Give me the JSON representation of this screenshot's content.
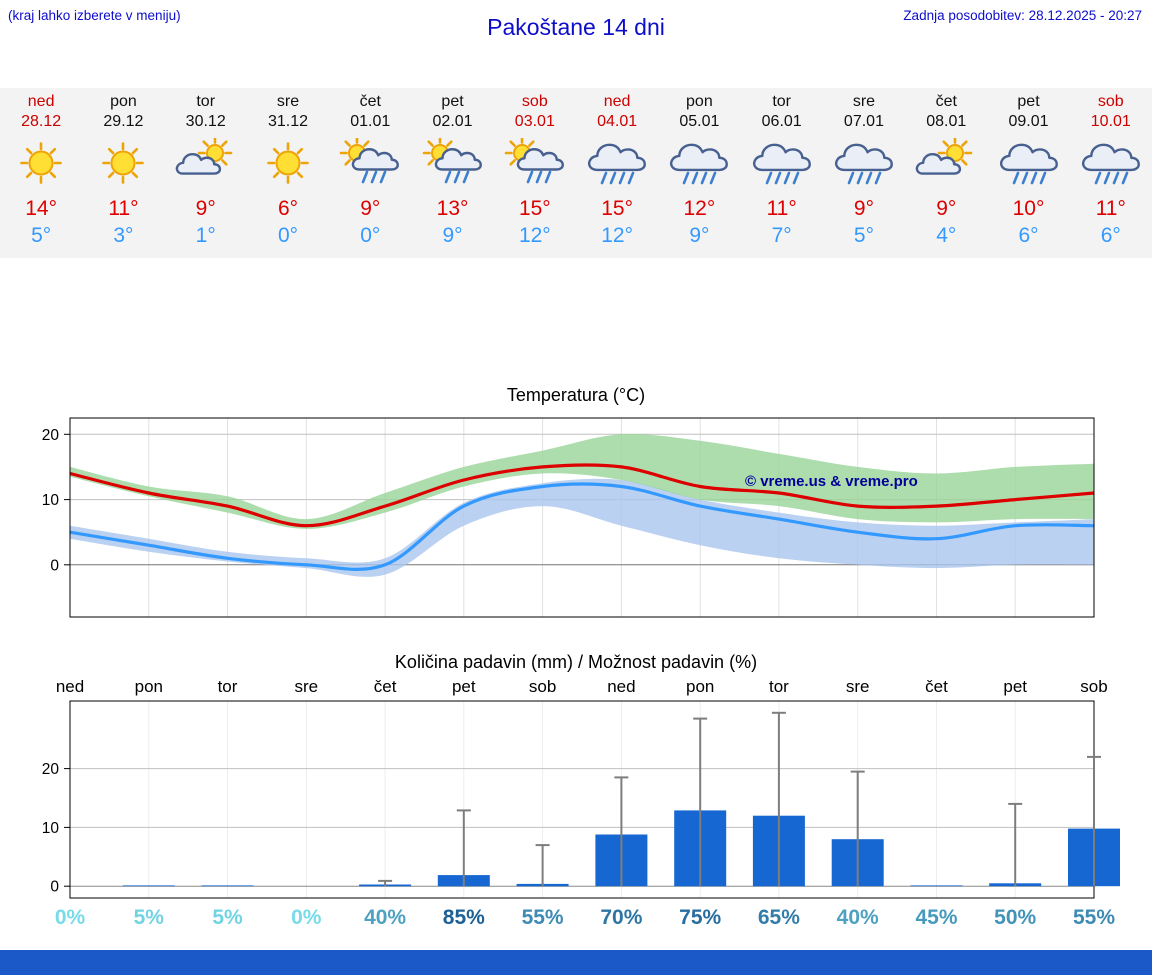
{
  "header": {
    "menu_hint": "(kraj lahko izberete v meniju)",
    "title": "Pakoštane 14 dni",
    "last_update": "Zadnja posodobitev: 28.12.2025 - 20:27"
  },
  "colors": {
    "header_blue": "#0d0dcc",
    "weekend_red": "#cc0000",
    "weekday_black": "#111111",
    "temp_high": "#dd0000",
    "temp_low": "#3399ff",
    "strip_bg": "#f3f3f3",
    "bar_blue": "#1767d2",
    "whisker_gray": "#7d7d7d",
    "prob_low": "#77dbe8",
    "prob_high": "#0d4a87",
    "copyright_blue": "#000099",
    "footer_blue": "#1c59c8"
  },
  "days": [
    {
      "name": "ned",
      "date": "28.12",
      "weekend": true,
      "icon": "sun-icon",
      "high": "14°",
      "low": "5°"
    },
    {
      "name": "pon",
      "date": "29.12",
      "weekend": false,
      "icon": "sun-icon",
      "high": "11°",
      "low": "3°"
    },
    {
      "name": "tor",
      "date": "30.12",
      "weekend": false,
      "icon": "sun-cloud-icon",
      "high": "9°",
      "low": "1°"
    },
    {
      "name": "sre",
      "date": "31.12",
      "weekend": false,
      "icon": "sun-icon",
      "high": "6°",
      "low": "0°"
    },
    {
      "name": "čet",
      "date": "01.01",
      "weekend": false,
      "icon": "sun-cloud-rain-icon",
      "high": "9°",
      "low": "0°"
    },
    {
      "name": "pet",
      "date": "02.01",
      "weekend": false,
      "icon": "sun-cloud-rain-icon",
      "high": "13°",
      "low": "9°"
    },
    {
      "name": "sob",
      "date": "03.01",
      "weekend": true,
      "icon": "sun-cloud-rain-icon",
      "high": "15°",
      "low": "12°"
    },
    {
      "name": "ned",
      "date": "04.01",
      "weekend": true,
      "icon": "cloud-rain-icon",
      "high": "15°",
      "low": "12°"
    },
    {
      "name": "pon",
      "date": "05.01",
      "weekend": false,
      "icon": "cloud-rain-icon",
      "high": "12°",
      "low": "9°"
    },
    {
      "name": "tor",
      "date": "06.01",
      "weekend": false,
      "icon": "cloud-rain-icon",
      "high": "11°",
      "low": "7°"
    },
    {
      "name": "sre",
      "date": "07.01",
      "weekend": false,
      "icon": "cloud-rain-icon",
      "high": "9°",
      "low": "5°"
    },
    {
      "name": "čet",
      "date": "08.01",
      "weekend": false,
      "icon": "sun-cloud-icon",
      "high": "9°",
      "low": "4°"
    },
    {
      "name": "pet",
      "date": "09.01",
      "weekend": false,
      "icon": "cloud-rain-icon",
      "high": "10°",
      "low": "6°"
    },
    {
      "name": "sob",
      "date": "10.01",
      "weekend": true,
      "icon": "cloud-rain-icon",
      "high": "11°",
      "low": "6°"
    }
  ],
  "chart_data": [
    {
      "type": "line",
      "title": "Temperatura (°C)",
      "categories": [
        "ned 28.12",
        "pon 29.12",
        "tor 30.12",
        "sre 31.12",
        "čet 01.01",
        "pet 02.01",
        "sob 03.01",
        "ned 04.01",
        "pon 05.01",
        "tor 06.01",
        "sre 07.01",
        "čet 08.01",
        "pet 09.01",
        "sob 10.01"
      ],
      "series": [
        {
          "id": "temp-max-line",
          "name": "najvišja temperatura (°C)",
          "color": "#dd0000",
          "values": [
            14,
            11,
            9,
            6,
            9,
            13,
            15,
            15,
            12,
            11,
            9,
            9,
            10,
            11
          ]
        },
        {
          "id": "temp-min-line",
          "name": "najnižja temperatura (°C)",
          "color": "#3399ff",
          "values": [
            5,
            3,
            1,
            0,
            0,
            9,
            12,
            12,
            9,
            7,
            5,
            4,
            6,
            6
          ]
        }
      ],
      "bands": [
        {
          "id": "temp-min-band",
          "name": "razpon min temperature",
          "color": "#aac6ee",
          "upper": [
            6,
            4,
            2,
            1,
            1,
            9.5,
            12.5,
            13,
            10,
            8,
            6.5,
            6,
            6.5,
            7
          ],
          "lower": [
            4,
            2,
            0.5,
            -0.5,
            -1.5,
            6,
            9,
            6,
            3,
            1,
            0,
            -0.5,
            0,
            0
          ]
        },
        {
          "id": "temp-max-band",
          "name": "razpon max temperature",
          "color": "#98d598",
          "upper": [
            15,
            12,
            10.5,
            7,
            11,
            15,
            17.5,
            20,
            19,
            17,
            15,
            14,
            15,
            15.5
          ],
          "lower": [
            13.5,
            10.5,
            8,
            5.5,
            8,
            12,
            14,
            13,
            10,
            9,
            7,
            6.5,
            7,
            7
          ]
        }
      ],
      "ylim": [
        -8,
        22.5
      ],
      "yticks": [
        20,
        10,
        0
      ],
      "grid": true,
      "legend": "none",
      "annotation": "© vreme.us & vreme.pro"
    },
    {
      "type": "bar",
      "title": "Količina padavin (mm) / Možnost padavin (%)",
      "categories": [
        "ned",
        "pon",
        "tor",
        "sre",
        "čet",
        "pet",
        "sob",
        "ned",
        "pon",
        "tor",
        "sre",
        "čet",
        "pet",
        "sob"
      ],
      "values": [
        0,
        0.1,
        0.1,
        0,
        0.3,
        1.9,
        0.4,
        8.8,
        12.9,
        12,
        8,
        0.1,
        0.5,
        9.8
      ],
      "whisker_max": [
        0,
        0,
        0,
        0,
        0.9,
        12.9,
        7,
        18.5,
        28.5,
        29.5,
        19.5,
        0,
        14,
        22
      ],
      "probabilities": [
        0,
        5,
        5,
        0,
        40,
        85,
        55,
        70,
        75,
        65,
        40,
        45,
        50,
        55
      ],
      "probability_labels": [
        "0%",
        "5%",
        "5%",
        "0%",
        "40%",
        "85%",
        "55%",
        "70%",
        "75%",
        "65%",
        "40%",
        "45%",
        "50%",
        "55%"
      ],
      "ylim": [
        -2,
        31.5
      ],
      "yticks": [
        20,
        10,
        0
      ],
      "grid": true,
      "legend": "none"
    }
  ]
}
